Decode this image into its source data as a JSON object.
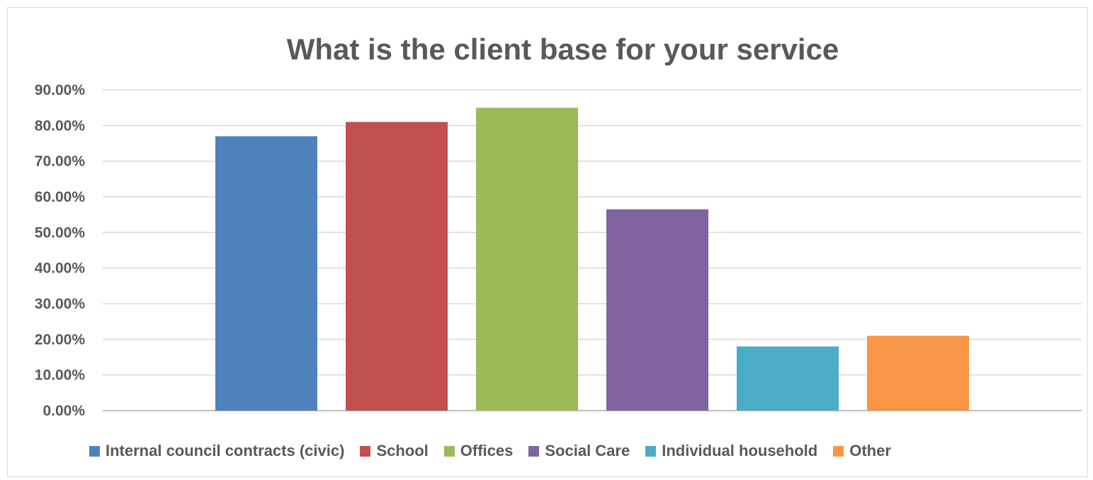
{
  "chart_data": {
    "type": "bar",
    "title": "What is the client base for your service",
    "xlabel": "",
    "ylabel": "",
    "categories": [
      "Internal council contracts (civic)",
      "School",
      "Offices",
      "Social Care",
      "Individual household",
      "Other"
    ],
    "values": [
      0.77,
      0.81,
      0.85,
      0.565,
      0.18,
      0.21
    ],
    "colors": [
      "#4f81bd",
      "#c0504d",
      "#9bbb59",
      "#8064a2",
      "#4bacc6",
      "#f79646"
    ],
    "ylim": [
      0,
      0.9
    ],
    "yticks": [
      0,
      0.1,
      0.2,
      0.3,
      0.4,
      0.5,
      0.6,
      0.7,
      0.8,
      0.9
    ],
    "ytick_labels": [
      "0.00%",
      "10.00%",
      "20.00%",
      "30.00%",
      "40.00%",
      "50.00%",
      "60.00%",
      "70.00%",
      "80.00%",
      "90.00%"
    ],
    "grid": true,
    "legend_position": "bottom",
    "gridline_color": "#d9d9d9",
    "axis_color": "#bfbfbf"
  }
}
